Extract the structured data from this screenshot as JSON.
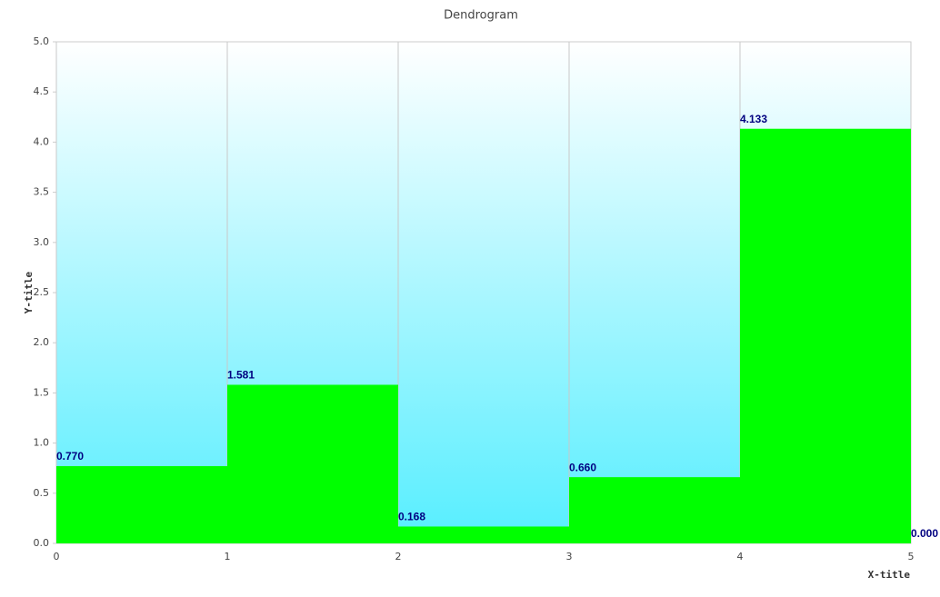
{
  "chart_data": {
    "type": "step",
    "title": "Dendrogram",
    "x_label": "X-title",
    "y_label": "Y-title",
    "x": [
      0,
      1,
      2,
      3,
      4,
      5
    ],
    "values": [
      0.77,
      1.581,
      0.168,
      0.66,
      4.133,
      0
    ],
    "value_labels": [
      "0.770",
      "1.581",
      "0.168",
      "0.660",
      "4.133",
      "0.000"
    ],
    "color": "#00ff00",
    "label_color": "#000080",
    "xlim": [
      0,
      5
    ],
    "xticks": [
      0,
      1,
      2,
      3,
      4,
      5
    ],
    "ylim": [
      0,
      5
    ],
    "yticks": [
      {
        "value": 0,
        "label": "0.0"
      },
      {
        "value": 0.5,
        "label": "0.5"
      },
      {
        "value": 1,
        "label": "1.0"
      },
      {
        "value": 1.5,
        "label": "1.5"
      },
      {
        "value": 2,
        "label": "2.0"
      },
      {
        "value": 2.5,
        "label": "2.5"
      },
      {
        "value": 3,
        "label": "3.0"
      },
      {
        "value": 3.5,
        "label": "3.5"
      },
      {
        "value": 4,
        "label": "4.0"
      },
      {
        "value": 4.5,
        "label": "4.5"
      },
      {
        "value": 5,
        "label": "5.0"
      }
    ],
    "grid_x": true
  }
}
